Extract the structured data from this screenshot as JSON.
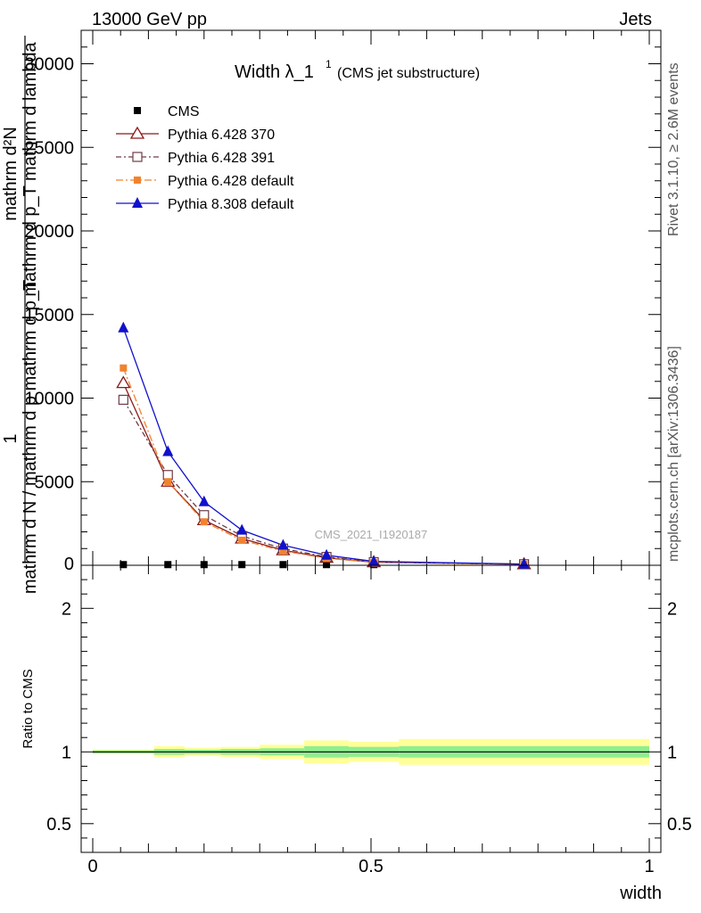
{
  "header": {
    "energy_label": "13000 GeV pp",
    "category_label": "Jets",
    "side_rivet": "Rivet 3.1.10, ≥ 2.6M events",
    "side_mcplots": "mcplots.cern.ch [arXiv:1306.3436]",
    "watermark": "CMS_2021_I1920187"
  },
  "chart_data": [
    {
      "type": "line",
      "title_main": "Width λ_1",
      "title_sup": "1",
      "title_sub": "(CMS jet substructure)",
      "ylabel_num": "1",
      "ylabel_den": "mathrm d N / mathrm d p mathrm d p_T",
      "ylabel_num2": "mathrm d²N",
      "ylabel_den2": "mathrm d p_T mathrm d lambda",
      "xlim": [
        0,
        1
      ],
      "ylim": [
        0,
        32000
      ],
      "yticks": [
        {
          "v": 5000,
          "label": "5000"
        },
        {
          "v": 10000,
          "label": "10000"
        },
        {
          "v": 15000,
          "label": "15000"
        },
        {
          "v": 20000,
          "label": "20000"
        },
        {
          "v": 25000,
          "label": "25000"
        },
        {
          "v": 30000,
          "label": "30000"
        }
      ],
      "legend": "top-left",
      "x": [
        0.055,
        0.135,
        0.2,
        0.268,
        0.342,
        0.42,
        0.505,
        0.775
      ],
      "series": [
        {
          "name": "CMS",
          "color": "#000000",
          "marker": "square",
          "dash": "",
          "values": [
            40,
            40,
            40,
            40,
            40,
            40,
            40,
            40
          ]
        },
        {
          "name": "Pythia 6.428 370",
          "color": "#8b1a1a",
          "marker": "triangle-open",
          "dash": "",
          "values": [
            10900,
            5000,
            2700,
            1600,
            900,
            450,
            180,
            60
          ]
        },
        {
          "name": "Pythia 6.428 391",
          "color": "#6e3c46",
          "marker": "square-open",
          "dash": "6,3,2,3",
          "values": [
            9900,
            5400,
            3000,
            1750,
            1000,
            500,
            190,
            65
          ]
        },
        {
          "name": "Pythia 6.428 default",
          "color": "#f2822e",
          "marker": "square",
          "dash": "8,3,2,3",
          "values": [
            11800,
            5000,
            2600,
            1500,
            850,
            420,
            170,
            55
          ]
        },
        {
          "name": "Pythia 8.308 default",
          "color": "#1111cc",
          "marker": "triangle",
          "dash": "",
          "values": [
            14200,
            6800,
            3800,
            2100,
            1200,
            600,
            230,
            70
          ]
        }
      ]
    },
    {
      "type": "area",
      "ylabel": "Ratio to CMS",
      "xlim": [
        0,
        1
      ],
      "ylim": [
        0.3,
        2.3
      ],
      "yticks": [
        {
          "v": 0.5,
          "label": "0.5"
        },
        {
          "v": 1,
          "label": "1"
        },
        {
          "v": 2,
          "label": "2"
        }
      ],
      "xticks": [
        {
          "v": 0,
          "label": "0"
        },
        {
          "v": 0.5,
          "label": "0.5"
        },
        {
          "v": 1,
          "label": "1"
        }
      ],
      "xlabel": "width",
      "bins": [
        {
          "lo": 0.0,
          "hi": 0.11,
          "in_lo": 0.99,
          "in_hi": 1.01,
          "out_lo": 0.985,
          "out_hi": 1.015
        },
        {
          "lo": 0.11,
          "hi": 0.165,
          "in_lo": 0.98,
          "in_hi": 1.02,
          "out_lo": 0.96,
          "out_hi": 1.04
        },
        {
          "lo": 0.165,
          "hi": 0.23,
          "in_lo": 0.985,
          "in_hi": 1.015,
          "out_lo": 0.97,
          "out_hi": 1.03
        },
        {
          "lo": 0.23,
          "hi": 0.3,
          "in_lo": 0.98,
          "in_hi": 1.02,
          "out_lo": 0.965,
          "out_hi": 1.035
        },
        {
          "lo": 0.3,
          "hi": 0.38,
          "in_lo": 0.975,
          "in_hi": 1.025,
          "out_lo": 0.95,
          "out_hi": 1.05
        },
        {
          "lo": 0.38,
          "hi": 0.46,
          "in_lo": 0.96,
          "in_hi": 1.04,
          "out_lo": 0.92,
          "out_hi": 1.08
        },
        {
          "lo": 0.46,
          "hi": 0.55,
          "in_lo": 0.965,
          "in_hi": 1.035,
          "out_lo": 0.93,
          "out_hi": 1.07
        },
        {
          "lo": 0.55,
          "hi": 1.0,
          "in_lo": 0.96,
          "in_hi": 1.04,
          "out_lo": 0.91,
          "out_hi": 1.09
        }
      ],
      "band_inner_color": "#90ee90",
      "band_outer_color": "#ffff99"
    }
  ]
}
